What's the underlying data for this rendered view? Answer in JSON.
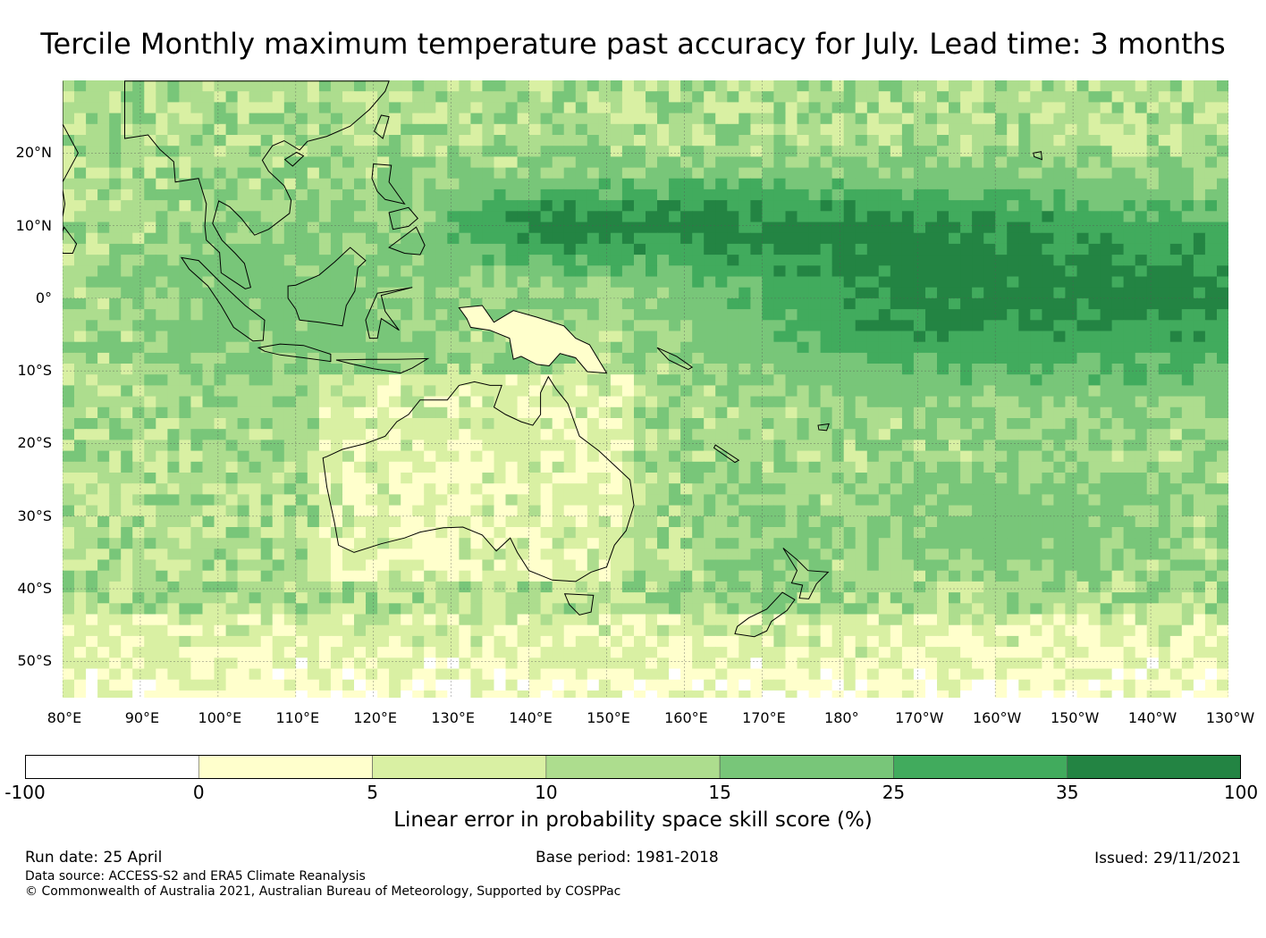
{
  "title": "Tercile Monthly maximum temperature past accuracy for July. Lead time: 3 months",
  "map": {
    "lon_range": [
      "80°E",
      "130°W"
    ],
    "lat_range": [
      "30°N",
      "55°S"
    ],
    "lat_labels": [
      "20°N",
      "10°N",
      "0°",
      "10°S",
      "20°S",
      "30°S",
      "40°S",
      "50°S"
    ],
    "lon_labels": [
      "80°E",
      "90°E",
      "100°E",
      "110°E",
      "120°E",
      "130°E",
      "140°E",
      "150°E",
      "160°E",
      "170°E",
      "180°",
      "170°W",
      "160°W",
      "150°W",
      "140°W",
      "130°W"
    ],
    "gridlines": true,
    "coastline_color": "#000000"
  },
  "colorbar": {
    "ticks": [
      "-100",
      "0",
      "5",
      "10",
      "15",
      "25",
      "35",
      "100"
    ],
    "colors": [
      "#ffffff",
      "#ffffcc",
      "#d9f0a3",
      "#addd8e",
      "#78c679",
      "#41ab5d",
      "#238443"
    ],
    "label": "Linear error in probability space skill score (%)"
  },
  "footer": {
    "run_date": "Run date: 25 April",
    "base_period": "Base period: 1981-2018",
    "issued": "Issued: 29/11/2021",
    "data_source": "Data source: ACCESS-S2 and ERA5 Climate Reanalysis",
    "copyright": "© Commonwealth of Australia 2021, Australian Bureau of Meteorology, Supported by COSPPac"
  }
}
